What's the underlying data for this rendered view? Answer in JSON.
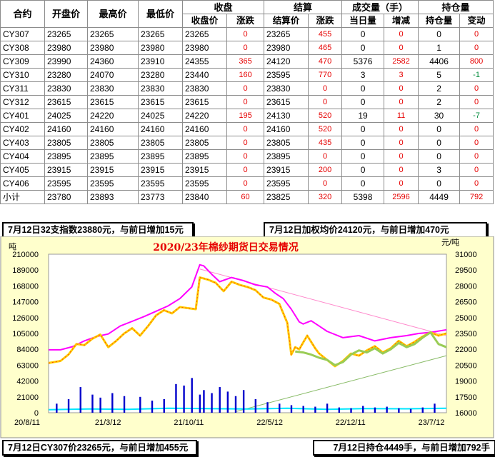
{
  "table": {
    "headers": {
      "contract": "合约",
      "open": "开盘价",
      "high": "最高价",
      "low": "最低价",
      "close_group": "收盘",
      "close": "收盘价",
      "close_chg": "涨跌",
      "settle_group": "结算",
      "settle": "结算价",
      "settle_chg": "涨跌",
      "volume_group": "成交量（手）",
      "vol_day": "当日量",
      "vol_chg": "增减",
      "oi_group": "持仓量",
      "oi": "持仓量",
      "oi_chg": "变动"
    },
    "rows": [
      {
        "name": "CY307",
        "open": "23265",
        "high": "23265",
        "low": "23265",
        "close": "23265",
        "close_chg": "0",
        "settle": "23265",
        "settle_chg": "455",
        "vol": "0",
        "vol_chg": "0",
        "oi": "0",
        "oi_chg": "0",
        "oi_chg_color": "red"
      },
      {
        "name": "CY308",
        "open": "23980",
        "high": "23980",
        "low": "23980",
        "close": "23980",
        "close_chg": "0",
        "settle": "23980",
        "settle_chg": "465",
        "vol": "0",
        "vol_chg": "0",
        "oi": "1",
        "oi_chg": "0",
        "oi_chg_color": "red"
      },
      {
        "name": "CY309",
        "open": "23990",
        "high": "24360",
        "low": "23910",
        "close": "24355",
        "close_chg": "365",
        "settle": "24120",
        "settle_chg": "470",
        "vol": "5376",
        "vol_chg": "2582",
        "oi": "4406",
        "oi_chg": "800",
        "oi_chg_color": "red"
      },
      {
        "name": "CY310",
        "open": "23280",
        "high": "24070",
        "low": "23280",
        "close": "23440",
        "close_chg": "160",
        "settle": "23595",
        "settle_chg": "770",
        "vol": "3",
        "vol_chg": "3",
        "oi": "5",
        "oi_chg": "-1",
        "oi_chg_color": "green"
      },
      {
        "name": "CY311",
        "open": "23830",
        "high": "23830",
        "low": "23830",
        "close": "23830",
        "close_chg": "0",
        "settle": "23830",
        "settle_chg": "0",
        "vol": "0",
        "vol_chg": "0",
        "oi": "2",
        "oi_chg": "0",
        "oi_chg_color": "red"
      },
      {
        "name": "CY312",
        "open": "23615",
        "high": "23615",
        "low": "23615",
        "close": "23615",
        "close_chg": "0",
        "settle": "23615",
        "settle_chg": "0",
        "vol": "0",
        "vol_chg": "0",
        "oi": "2",
        "oi_chg": "0",
        "oi_chg_color": "red"
      },
      {
        "name": "CY401",
        "open": "24025",
        "high": "24220",
        "low": "24025",
        "close": "24220",
        "close_chg": "195",
        "settle": "24130",
        "settle_chg": "520",
        "vol": "19",
        "vol_chg": "11",
        "oi": "30",
        "oi_chg": "-7",
        "oi_chg_color": "green"
      },
      {
        "name": "CY402",
        "open": "24160",
        "high": "24160",
        "low": "24160",
        "close": "24160",
        "close_chg": "0",
        "settle": "24160",
        "settle_chg": "520",
        "vol": "0",
        "vol_chg": "0",
        "oi": "0",
        "oi_chg": "0",
        "oi_chg_color": "red"
      },
      {
        "name": "CY403",
        "open": "23805",
        "high": "23805",
        "low": "23805",
        "close": "23805",
        "close_chg": "0",
        "settle": "23805",
        "settle_chg": "435",
        "vol": "0",
        "vol_chg": "0",
        "oi": "0",
        "oi_chg": "0",
        "oi_chg_color": "red"
      },
      {
        "name": "CY404",
        "open": "23895",
        "high": "23895",
        "low": "23895",
        "close": "23895",
        "close_chg": "0",
        "settle": "23895",
        "settle_chg": "0",
        "vol": "0",
        "vol_chg": "0",
        "oi": "0",
        "oi_chg": "0",
        "oi_chg_color": "red"
      },
      {
        "name": "CY405",
        "open": "23915",
        "high": "23915",
        "low": "23915",
        "close": "23915",
        "close_chg": "0",
        "settle": "23915",
        "settle_chg": "200",
        "vol": "0",
        "vol_chg": "0",
        "oi": "3",
        "oi_chg": "0",
        "oi_chg_color": "red"
      },
      {
        "name": "CY406",
        "open": "23595",
        "high": "23595",
        "low": "23595",
        "close": "23595",
        "close_chg": "0",
        "settle": "23595",
        "settle_chg": "0",
        "vol": "0",
        "vol_chg": "0",
        "oi": "0",
        "oi_chg": "0",
        "oi_chg_color": "red"
      },
      {
        "name": "小计",
        "open": "23780",
        "high": "23893",
        "low": "23773",
        "close": "23840",
        "close_chg": "60",
        "settle": "23825",
        "settle_chg": "320",
        "vol": "5398",
        "vol_chg": "2596",
        "oi": "4449",
        "oi_chg": "792",
        "oi_chg_color": "red"
      }
    ]
  },
  "captions": {
    "top_left": "7月12日32支指数23880元，与前日增加15元",
    "top_right": "7月12日加权均价24120元，与前日增加470元",
    "bottom_left": "7月12日CY307价23265元，与前日增加455元",
    "bottom_right": "7月12日持仓4449手，与前日增加792手"
  },
  "chart_data": {
    "type": "line",
    "title": "2020/23年棉纱期货日交易情况",
    "left_unit": "吨",
    "right_unit": "元/吨",
    "left_axis": {
      "min": 0,
      "max": 210000,
      "ticks": [
        "0",
        "21000",
        "42000",
        "63000",
        "84000",
        "105000",
        "126000",
        "147000",
        "168000",
        "189000",
        "210000"
      ]
    },
    "right_axis": {
      "min": 16000,
      "max": 31000,
      "ticks": [
        "16000",
        "17500",
        "19000",
        "20500",
        "22000",
        "23500",
        "25000",
        "26500",
        "28000",
        "29500",
        "31000"
      ]
    },
    "x_labels": [
      "20/8/11",
      "21/3/12",
      "21/10/11",
      "22/5/12",
      "22/12/11",
      "23/7/12"
    ],
    "grid": false,
    "series": [
      {
        "axis": "right",
        "color": "#ff00ff",
        "x": [
          0,
          0.03,
          0.06,
          0.09,
          0.12,
          0.15,
          0.18,
          0.21,
          0.24,
          0.27,
          0.3,
          0.33,
          0.36,
          0.38,
          0.39,
          0.41,
          0.43,
          0.46,
          0.49,
          0.52,
          0.55,
          0.57,
          0.59,
          0.61,
          0.63,
          0.64,
          0.66,
          0.68,
          0.7,
          0.74,
          0.78,
          0.82,
          0.86,
          0.9,
          0.93,
          0.96,
          1.0
        ],
        "y": [
          21950,
          21950,
          22250,
          22800,
          23200,
          23450,
          24200,
          24650,
          25100,
          25600,
          26100,
          26800,
          27900,
          30000,
          29900,
          29100,
          28400,
          28800,
          28500,
          28100,
          27900,
          27300,
          26800,
          25800,
          24600,
          24400,
          24700,
          24200,
          23700,
          23100,
          23300,
          22800,
          23100,
          23300,
          23500,
          23600,
          23850
        ]
      },
      {
        "axis": "right",
        "color": "#ffcc00",
        "x": [
          0,
          0.03,
          0.05,
          0.07,
          0.09,
          0.11,
          0.13,
          0.15,
          0.17,
          0.19,
          0.21,
          0.23,
          0.25,
          0.27,
          0.29,
          0.31,
          0.33,
          0.35,
          0.37,
          0.38,
          0.4,
          0.42,
          0.44,
          0.46,
          0.48,
          0.5,
          0.52,
          0.54,
          0.56,
          0.58,
          0.6,
          0.61,
          0.62,
          0.63,
          0.65,
          0.67,
          0.68,
          0.7,
          0.72,
          0.74,
          0.76,
          0.78,
          0.8,
          0.82,
          0.84,
          0.86,
          0.88,
          0.9,
          0.92,
          0.94,
          0.96,
          0.98,
          1.0
        ],
        "y": [
          20700,
          20900,
          21500,
          22500,
          22400,
          23000,
          23400,
          22200,
          22800,
          23500,
          24000,
          23300,
          24200,
          25200,
          25700,
          25400,
          26000,
          25900,
          25800,
          28800,
          28600,
          28300,
          27500,
          28400,
          28100,
          27900,
          27600,
          26900,
          26700,
          26300,
          24500,
          21500,
          22200,
          22000,
          23300,
          22100,
          21600,
          21000,
          20400,
          20900,
          21600,
          21400,
          21900,
          22300,
          21700,
          22100,
          22800,
          22300,
          22700,
          23200,
          23600,
          23300,
          23500
        ]
      },
      {
        "axis": "right",
        "color": "#99cc55",
        "x": [
          0.62,
          0.64,
          0.66,
          0.68,
          0.7,
          0.72,
          0.74,
          0.76,
          0.78,
          0.8,
          0.82,
          0.84,
          0.86,
          0.88,
          0.9,
          0.92,
          0.94,
          0.96,
          0.98,
          1.0
        ],
        "y": [
          21800,
          21700,
          21500,
          21200,
          21000,
          20500,
          20800,
          21500,
          21900,
          21700,
          22100,
          21600,
          22000,
          22600,
          22200,
          22500,
          23100,
          23600,
          22500,
          22200
        ]
      },
      {
        "axis": "left",
        "color": "#00e5ff",
        "x": [
          0,
          0.1,
          0.2,
          0.3,
          0.4,
          0.5,
          0.6,
          0.7,
          0.8,
          0.9,
          1.0
        ],
        "y": [
          4000,
          5000,
          4500,
          6000,
          5500,
          5000,
          6000,
          4500,
          5500,
          5200,
          6000
        ]
      },
      {
        "axis": "left",
        "color": "#0000cc",
        "kind": "bar",
        "x": [
          0.02,
          0.05,
          0.08,
          0.11,
          0.13,
          0.16,
          0.19,
          0.23,
          0.26,
          0.29,
          0.32,
          0.34,
          0.36,
          0.38,
          0.39,
          0.41,
          0.43,
          0.45,
          0.47,
          0.49,
          0.52,
          0.55,
          0.58,
          0.61,
          0.64,
          0.67,
          0.7,
          0.73,
          0.76,
          0.79,
          0.82,
          0.85,
          0.88,
          0.91,
          0.94,
          0.97
        ],
        "y": [
          12000,
          18000,
          34000,
          24000,
          20000,
          26000,
          22000,
          21000,
          16000,
          18000,
          38000,
          36000,
          46000,
          24000,
          30000,
          26000,
          34000,
          28000,
          22000,
          30000,
          18000,
          14000,
          12000,
          10000,
          9000,
          8000,
          12000,
          7000,
          6000,
          9000,
          7000,
          8000,
          6000,
          5000,
          7000,
          12000
        ]
      }
    ],
    "trendlines": [
      {
        "color": "#ff88cc",
        "axis": "right",
        "from": [
          0.38,
          29600
        ],
        "to": [
          1.0,
          23300
        ]
      },
      {
        "color": "#88bb66",
        "axis": "right",
        "from": [
          0.47,
          16100
        ],
        "to": [
          1.0,
          21400
        ]
      }
    ]
  }
}
